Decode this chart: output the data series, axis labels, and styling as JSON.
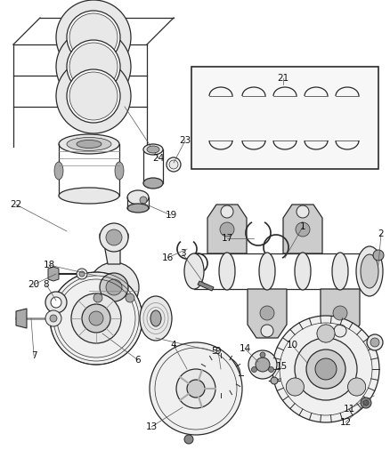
{
  "bg_color": "#ffffff",
  "line_color": "#2a2a2a",
  "figsize": [
    4.38,
    5.33
  ],
  "dpi": 100,
  "label_fontsize": 7.5,
  "lw": 0.9
}
